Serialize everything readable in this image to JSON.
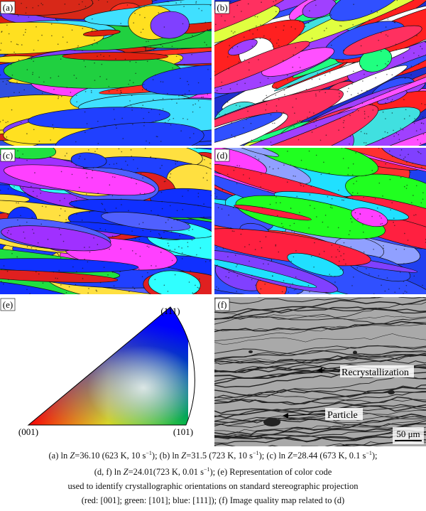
{
  "panels": [
    {
      "label": "(a)"
    },
    {
      "label": "(b)"
    },
    {
      "label": "(c)"
    },
    {
      "label": "(d)"
    },
    {
      "label": "(e)"
    },
    {
      "label": "(f)"
    }
  ],
  "color_code": {
    "top": "(111)",
    "left": "(001)",
    "right": "(101)"
  },
  "quality_map": {
    "recrystallization": "Recrystallization",
    "particle": "Particle",
    "scale": "50 μm"
  },
  "caption": {
    "lines": [
      [
        "(a) ln ",
        "Z",
        "=36.10 (623 K, 10 s",
        "−1",
        "); (b) ln ",
        "Z",
        "=31.5 (723 K, 10 s",
        "−1",
        "); (c) ln ",
        "Z",
        "=28.44 (673 K, 0.1 s",
        "−1",
        ");"
      ],
      [
        "(d, f) ln ",
        "Z",
        "=24.01(723 K, 0.01 s",
        "−1",
        "); (e) Representation of color code"
      ],
      [
        "used to identify crystallographic orientations on standard stereographic projection"
      ],
      [
        "(red: [001]; green: [101]; blue: [111]); (f) Image quality map related to (d)"
      ]
    ]
  }
}
